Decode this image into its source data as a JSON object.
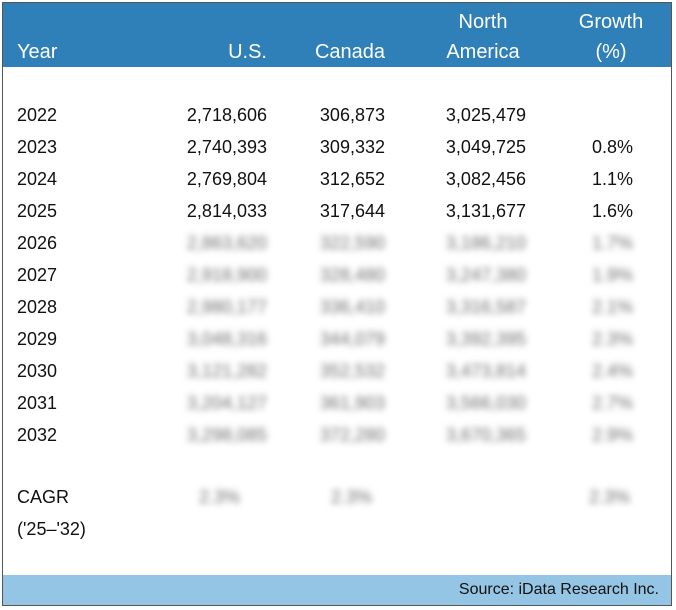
{
  "header": {
    "year": "Year",
    "us": "U.S.",
    "canada": "Canada",
    "na_line1": "North",
    "na_line2": "America",
    "growth_line1": "Growth",
    "growth_line2": "(%)"
  },
  "rows": [
    {
      "year": "2022",
      "us": "2,718,606",
      "canada": "306,873",
      "na": "3,025,479",
      "growth": ""
    },
    {
      "year": "2023",
      "us": "2,740,393",
      "canada": "309,332",
      "na": "3,049,725",
      "growth": "0.8%"
    },
    {
      "year": "2024",
      "us": "2,769,804",
      "canada": "312,652",
      "na": "3,082,456",
      "growth": "1.1%"
    },
    {
      "year": "2025",
      "us": "2,814,033",
      "canada": "317,644",
      "na": "3,131,677",
      "growth": "1.6%"
    },
    {
      "year": "2026",
      "us": "2,863,620",
      "canada": "322,590",
      "na": "3,186,210",
      "growth": "1.7%"
    },
    {
      "year": "2027",
      "us": "2,918,900",
      "canada": "328,480",
      "na": "3,247,380",
      "growth": "1.9%"
    },
    {
      "year": "2028",
      "us": "2,980,177",
      "canada": "336,410",
      "na": "3,316,587",
      "growth": "2.1%"
    },
    {
      "year": "2029",
      "us": "3,048,316",
      "canada": "344,079",
      "na": "3,392,395",
      "growth": "2.3%"
    },
    {
      "year": "2030",
      "us": "3,121,282",
      "canada": "352,532",
      "na": "3,473,814",
      "growth": "2.4%"
    },
    {
      "year": "2031",
      "us": "3,204,127",
      "canada": "361,903",
      "na": "3,566,030",
      "growth": "2.7%"
    },
    {
      "year": "2032",
      "us": "3,298,085",
      "canada": "372,280",
      "na": "3,670,365",
      "growth": "2.9%"
    }
  ],
  "cagr": {
    "label_line1": "CAGR",
    "label_line2": "('25–'32)",
    "us": "2.3%",
    "canada": "2.3%",
    "growth": "2.3%"
  },
  "footer": {
    "source": "Source: iData Research Inc."
  },
  "colors": {
    "header_bg": "#2f7fb8",
    "footer_bg": "#95c5e4"
  }
}
